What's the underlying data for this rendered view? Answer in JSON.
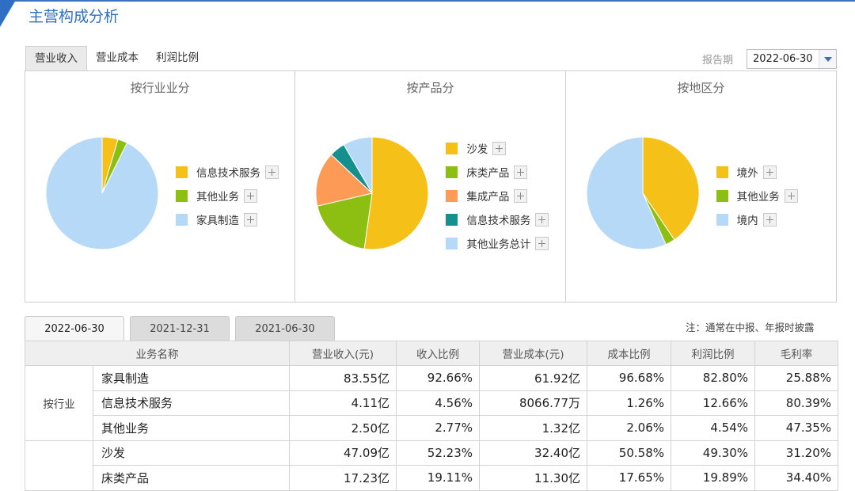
{
  "header": {
    "title": "主营构成分析"
  },
  "tabs": [
    {
      "label": "营业收入",
      "active": true
    },
    {
      "label": "营业成本",
      "active": false
    },
    {
      "label": "利润比例",
      "active": false
    }
  ],
  "period": {
    "label": "报告期",
    "value": "2022-06-30"
  },
  "panels": [
    {
      "title": "按行业业分",
      "chart_data": {
        "type": "pie",
        "categories": [
          "信息技术服务",
          "其他业务",
          "家具制造"
        ],
        "values": [
          4.56,
          2.77,
          92.66
        ],
        "colors": [
          "#f5c018",
          "#8dbe12",
          "#b6d9f7"
        ]
      }
    },
    {
      "title": "按产品分",
      "chart_data": {
        "type": "pie",
        "categories": [
          "沙发",
          "床类产品",
          "集成产品",
          "信息技术服务",
          "其他业务总计"
        ],
        "values": [
          52.23,
          19.11,
          15.7,
          4.56,
          8.4
        ],
        "colors": [
          "#f5c018",
          "#8dbe12",
          "#fd9a55",
          "#15908e",
          "#b6d9f7"
        ]
      }
    },
    {
      "title": "按地区分",
      "chart_data": {
        "type": "pie",
        "categories": [
          "境外",
          "其他业务",
          "境内"
        ],
        "values": [
          40.5,
          2.77,
          56.73
        ],
        "colors": [
          "#f5c018",
          "#8dbe12",
          "#b6d9f7"
        ]
      }
    }
  ],
  "bottom_tabs": [
    {
      "label": "2022-06-30",
      "active": true
    },
    {
      "label": "2021-12-31",
      "active": false
    },
    {
      "label": "2021-06-30",
      "active": false
    }
  ],
  "note": "注：通常在中报、年报时披露",
  "table": {
    "headers": [
      "业务名称",
      "营业收入(元)",
      "收入比例",
      "营业成本(元)",
      "成本比例",
      "利润比例",
      "毛利率"
    ],
    "groups": [
      {
        "label": "按行业",
        "rows": [
          [
            "家具制造",
            "83.55亿",
            "92.66%",
            "61.92亿",
            "96.68%",
            "82.80%",
            "25.88%"
          ],
          [
            "信息技术服务",
            "4.11亿",
            "4.56%",
            "8066.77万",
            "1.26%",
            "12.66%",
            "80.39%"
          ],
          [
            "其他业务",
            "2.50亿",
            "2.77%",
            "1.32亿",
            "2.06%",
            "4.54%",
            "47.35%"
          ]
        ]
      },
      {
        "label": "",
        "rows": [
          [
            "沙发",
            "47.09亿",
            "52.23%",
            "32.40亿",
            "50.58%",
            "49.30%",
            "31.20%"
          ],
          [
            "床类产品",
            "17.23亿",
            "19.11%",
            "11.30亿",
            "17.65%",
            "19.89%",
            "34.40%"
          ]
        ]
      }
    ]
  }
}
